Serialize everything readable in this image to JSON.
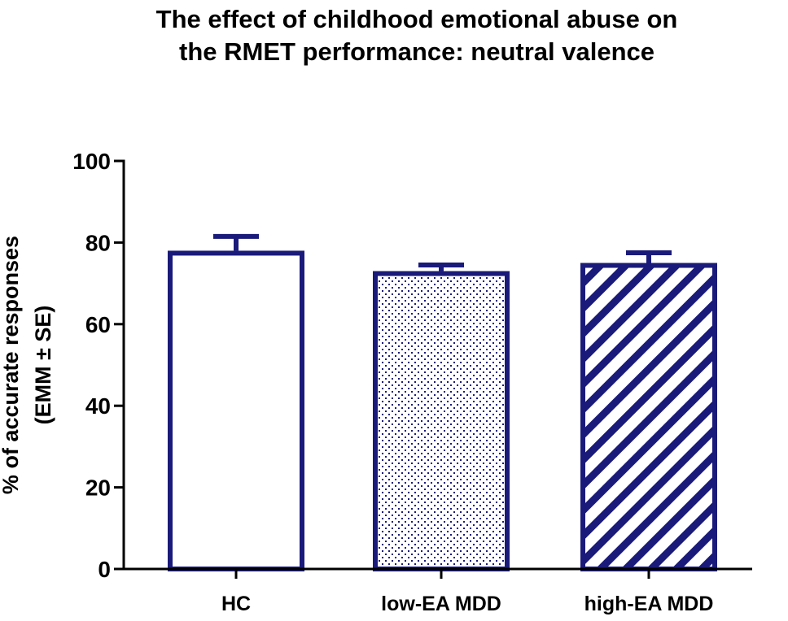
{
  "chart_data": {
    "type": "bar",
    "title_lines": [
      "The effect of childhood emotional abuse on",
      "the RMET performance: neutral valence"
    ],
    "ylabel_lines": [
      "% of accurate responses",
      "(EMM ± SE)"
    ],
    "xlabel": "",
    "categories": [
      "HC",
      "low-EA MDD",
      "high-EA MDD"
    ],
    "values": [
      78,
      73,
      75
    ],
    "errors": [
      3.5,
      1.5,
      2.5
    ],
    "patterns": [
      "none",
      "dots",
      "diagonal-stripes"
    ],
    "ylim": [
      0,
      100
    ],
    "yticks": [
      0,
      20,
      40,
      60,
      80,
      100
    ],
    "grid": false,
    "colors": {
      "bar_stroke": "#1a1a7a",
      "bar_fill": "#ffffff",
      "axis": "#000000"
    }
  }
}
